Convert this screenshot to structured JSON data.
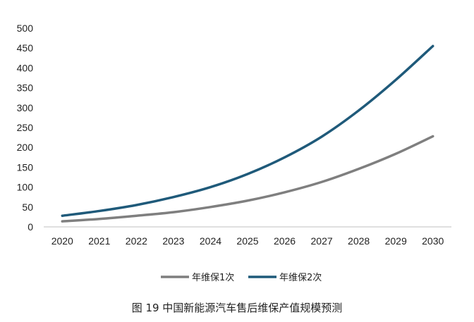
{
  "chart_data": {
    "type": "line",
    "categories": [
      "2020",
      "2021",
      "2022",
      "2023",
      "2024",
      "2025",
      "2026",
      "2027",
      "2028",
      "2029",
      "2030"
    ],
    "series": [
      {
        "name": "年维保1次",
        "color": "#7f7f7f",
        "values": [
          14,
          20,
          28,
          37,
          50,
          66,
          87,
          113,
          146,
          184,
          228
        ]
      },
      {
        "name": "年维保2次",
        "color": "#1f5a7a",
        "values": [
          28,
          40,
          55,
          75,
          100,
          133,
          175,
          227,
          293,
          370,
          455
        ]
      }
    ],
    "ylim": [
      0,
      500
    ],
    "yticks": [
      0,
      50,
      100,
      150,
      200,
      250,
      300,
      350,
      400,
      450,
      500
    ],
    "grid": false,
    "legend_position": "bottom-center",
    "caption": "图 19  中国新能源汽车售后维保产值规模预测"
  }
}
